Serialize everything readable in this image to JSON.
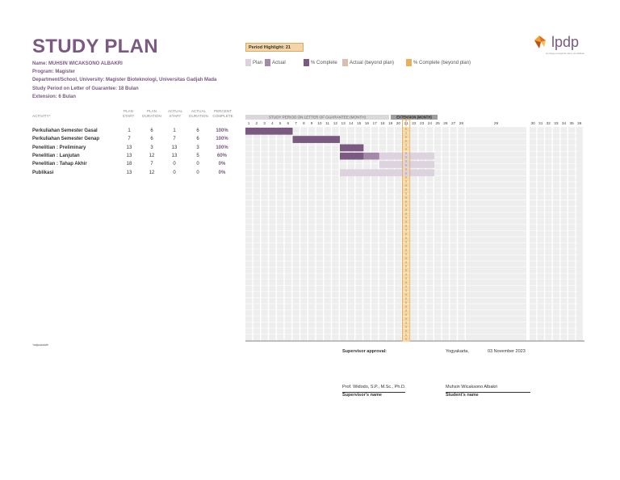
{
  "header": {
    "title": "STUDY PLAN",
    "name": "Name: MUHSIN WICAKSONO ALBAKRI",
    "program": "Program: Magister",
    "department": "Department/School, University: Magister Bioteknologi, Universitas Gadjah Mada",
    "study_period": "Study Period on Letter of Guarantee: 18 Bulan",
    "extension": "Extension: 6 Bulan"
  },
  "period_highlight": {
    "label": "Period Highlight:",
    "value": 21
  },
  "legend": {
    "plan": "Plan",
    "actual": "Actual",
    "complete": "% Complete",
    "actual_beyond": "Actual (beyond plan)",
    "complete_beyond": "% Complete (beyond plan)"
  },
  "logo": {
    "text": "lpdp",
    "tagline": "lembaga pengelola dana pendidikan"
  },
  "columns": {
    "activity": "ACTIVITY*",
    "plan_start": [
      "PLAN",
      "START"
    ],
    "plan_duration": [
      "PLAN",
      "DURATION"
    ],
    "actual_start": [
      "ACTUAL",
      "START"
    ],
    "actual_duration": [
      "ACTUAL",
      "DURATION"
    ],
    "percent": [
      "PERCENT",
      "COMPLETE"
    ]
  },
  "gantt": {
    "study_label": "STUDY PERIOD ON LETTER OF GUARANTEE (MONTH)",
    "extension_label": "EXTENSION (MONTH)",
    "periods": [
      "1",
      "2",
      "3",
      "4",
      "5",
      "6",
      "7",
      "8",
      "9",
      "10",
      "11",
      "12",
      "13",
      "14",
      "15",
      "16",
      "17",
      "18",
      "19",
      "20",
      "21",
      "22",
      "23",
      "24",
      "25",
      "26",
      "27",
      "28",
      "29",
      "30",
      "31",
      "32",
      "33",
      "34",
      "35",
      "36"
    ],
    "highlight_period": 21
  },
  "activities": [
    {
      "name": "Perkuliahan Semester Gasal",
      "plan_start": 1,
      "plan_duration": 6,
      "actual_start": 1,
      "actual_duration": 6,
      "percent": "100%",
      "complete": 1.0
    },
    {
      "name": "Perkuliahan Semester Genap",
      "plan_start": 7,
      "plan_duration": 6,
      "actual_start": 7,
      "actual_duration": 6,
      "percent": "100%",
      "complete": 1.0
    },
    {
      "name": "Penelitian : Preliminary",
      "plan_start": 13,
      "plan_duration": 3,
      "actual_start": 13,
      "actual_duration": 3,
      "percent": "100%",
      "complete": 1.0
    },
    {
      "name": "Penelitian : Lanjutan",
      "plan_start": 13,
      "plan_duration": 12,
      "actual_start": 13,
      "actual_duration": 5,
      "percent": "60%",
      "complete": 0.6
    },
    {
      "name": "Penelitian : Tahap Akhir",
      "plan_start": 18,
      "plan_duration": 7,
      "actual_start": 0,
      "actual_duration": 0,
      "percent": "0%",
      "complete": 0
    },
    {
      "name": "Publikasi",
      "plan_start": 13,
      "plan_duration": 12,
      "actual_start": 0,
      "actual_duration": 0,
      "percent": "0%",
      "complete": 0
    }
  ],
  "footnote": "*adjustable",
  "signature": {
    "approval": "Supervisor approval:",
    "place": "Yogyakarta,",
    "date": "03 November 2023",
    "supervisor_name": "Prof. Widodo, S.P., M.Sc., Ph.D.",
    "supervisor_label": "Supervisor's name",
    "student_name": "Muhsin Wicaksono Albakri",
    "student_label": "Student's name"
  },
  "colors": {
    "brand": "#7a5a80",
    "plan": "#ddd3de",
    "actual": "#a48aa8",
    "complete": "#7a5a80",
    "actual_beyond": "#d8bfae",
    "complete_beyond": "#e8b05c",
    "highlight": "#f6d9a8"
  }
}
